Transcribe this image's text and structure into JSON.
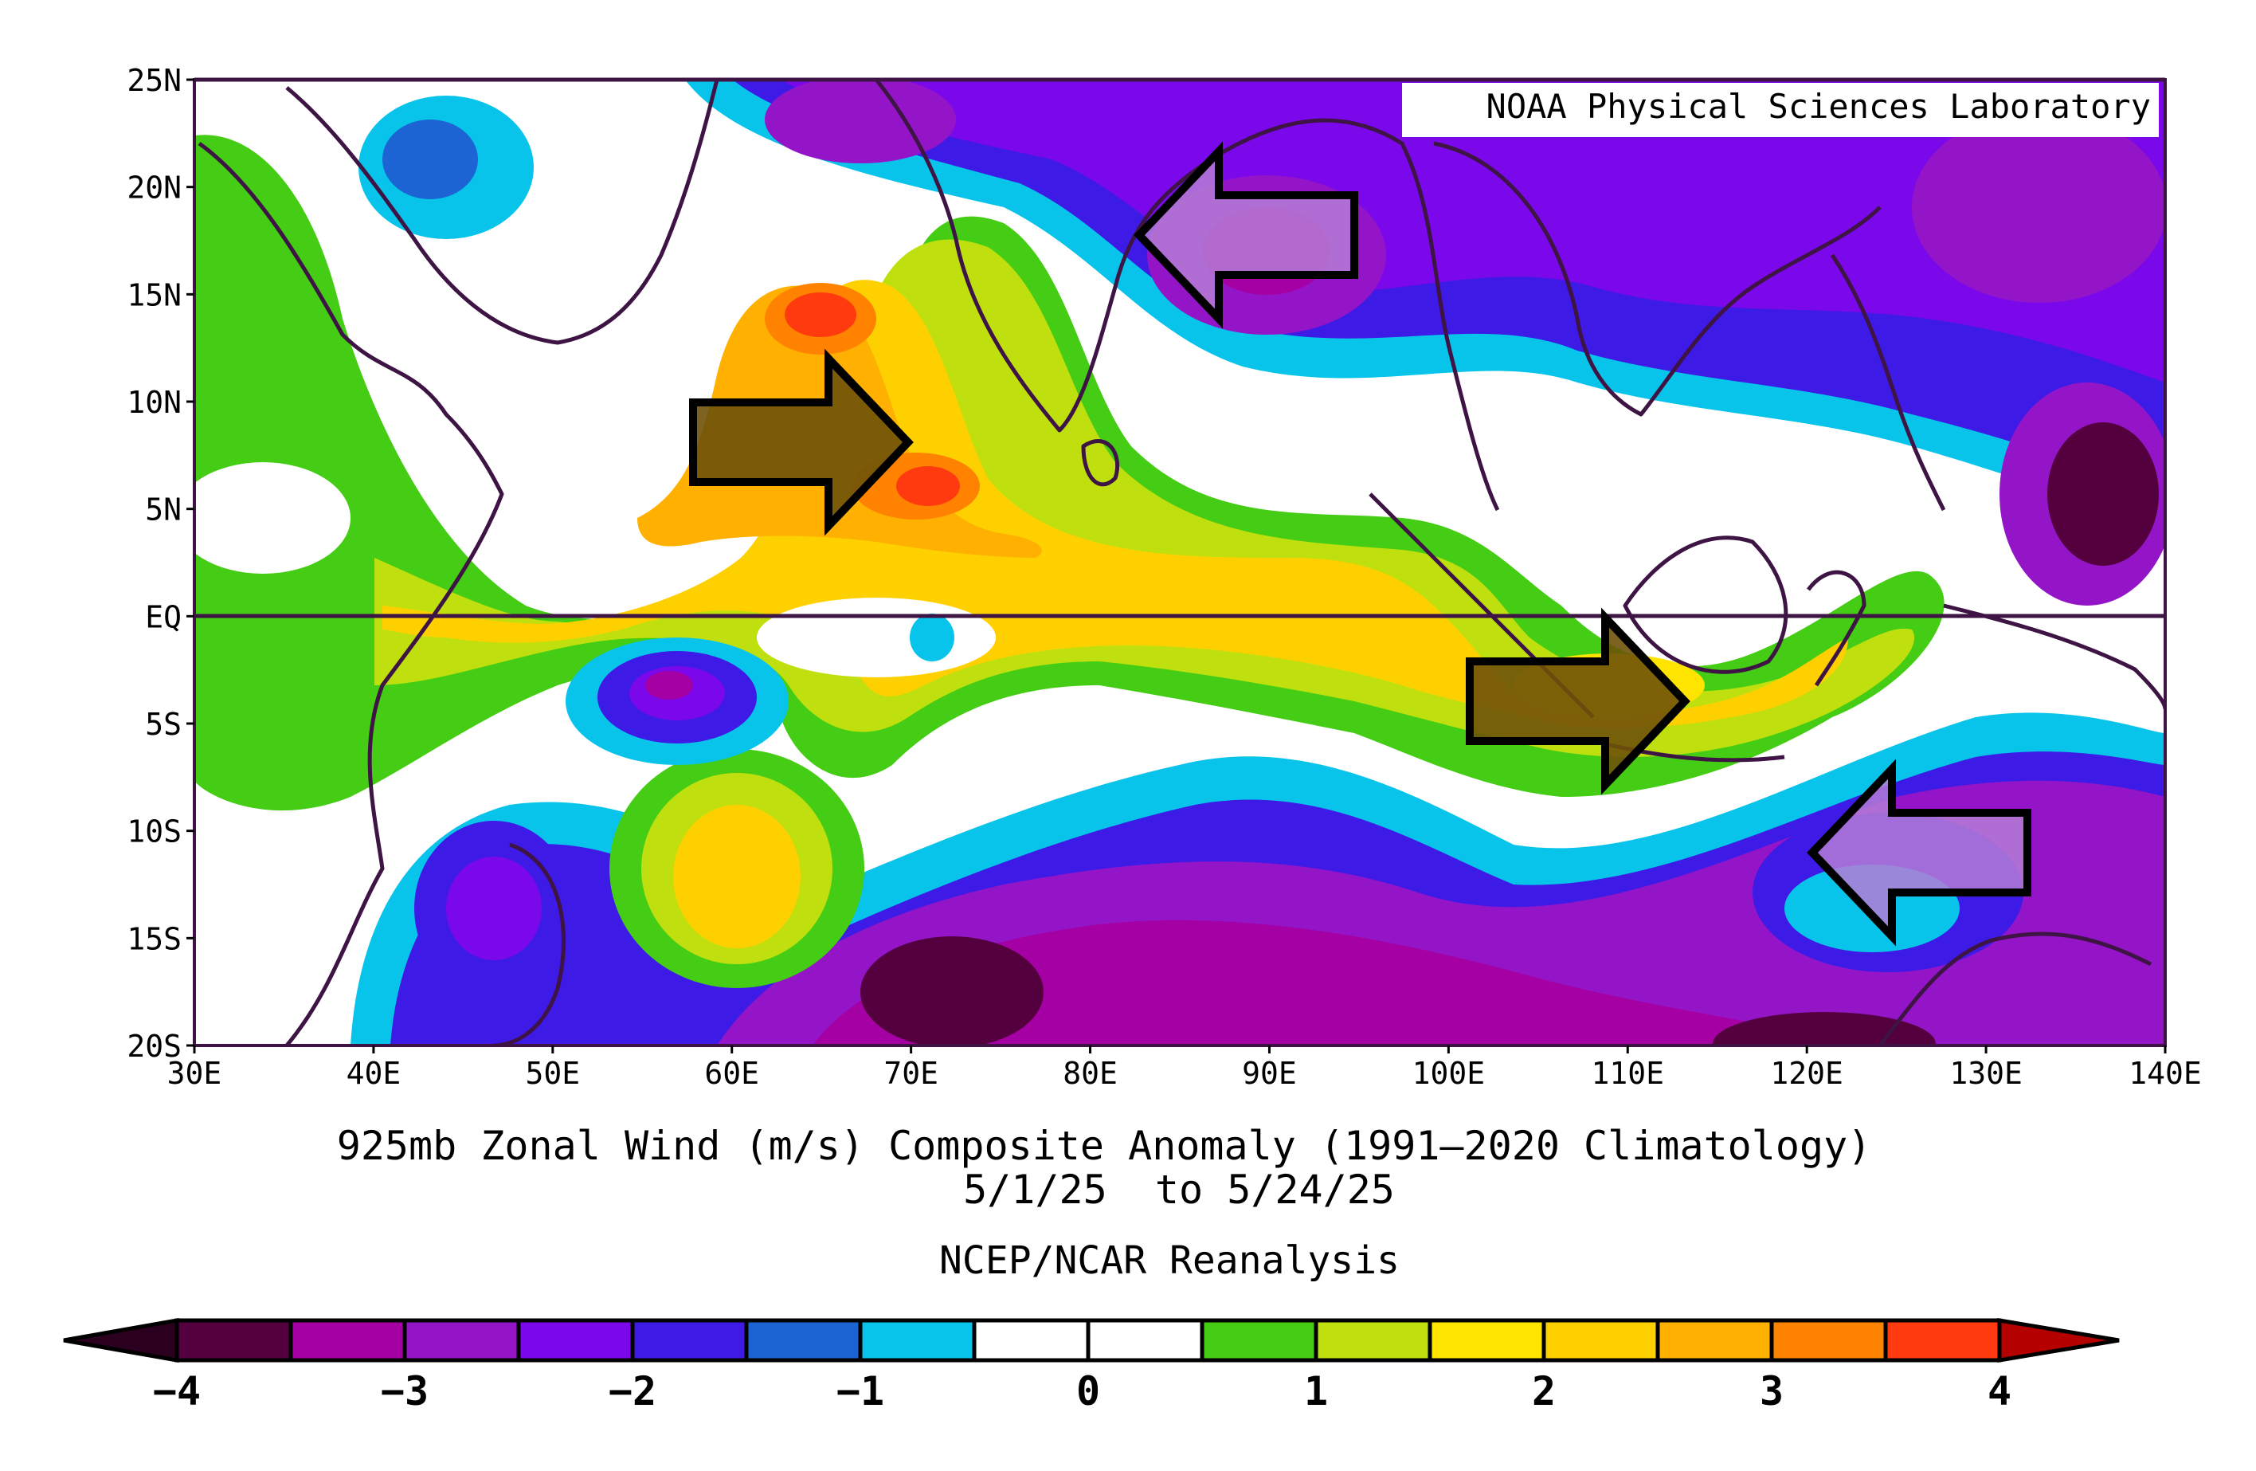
{
  "map": {
    "watermark": "NOAA Physical Sciences Laboratory",
    "lat_labels": [
      "25N",
      "20N",
      "15N",
      "10N",
      "5N",
      "EQ",
      "5S",
      "10S",
      "15S",
      "20S"
    ],
    "lon_labels": [
      "30E",
      "40E",
      "50E",
      "60E",
      "70E",
      "80E",
      "90E",
      "100E",
      "110E",
      "120E",
      "130E",
      "140E"
    ],
    "lat_range": [
      -20,
      25
    ],
    "lon_range": [
      30,
      140
    ],
    "title_line1": "925mb Zonal Wind (m/s) Composite Anomaly (1991—2020 Climatology)",
    "title_line2": "5/1/25  to 5/24/25",
    "source": "NCEP/NCAR Reanalysis",
    "units": "m/s"
  },
  "colorbar": {
    "tick_labels": [
      "−4",
      "−3",
      "−2",
      "−1",
      "0",
      "1",
      "2",
      "3",
      "4"
    ],
    "colors": [
      "#54003f",
      "#a400a4",
      "#9415c8",
      "#7b08ea",
      "#3e1ae6",
      "#1c64d4",
      "#08c4ea",
      "#ffffff",
      "#ffffff",
      "#44cd14",
      "#bfe00e",
      "#ffe400",
      "#ffd000",
      "#ffb000",
      "#ff8300",
      "#ff3a0e"
    ],
    "under_color": "#2a001e",
    "over_color": "#b50000"
  },
  "annotations": [
    {
      "label": "westerly-anomaly-arabian-sea",
      "direction": "east",
      "color": "#6e5209"
    },
    {
      "label": "easterly-anomaly-bay-of-bengal",
      "direction": "west",
      "color": "#b57cd6"
    },
    {
      "label": "westerly-anomaly-java-sea",
      "direction": "east",
      "color": "#6e5209"
    },
    {
      "label": "easterly-anomaly-timor-sea",
      "direction": "west",
      "color": "#b57cd6"
    }
  ]
}
